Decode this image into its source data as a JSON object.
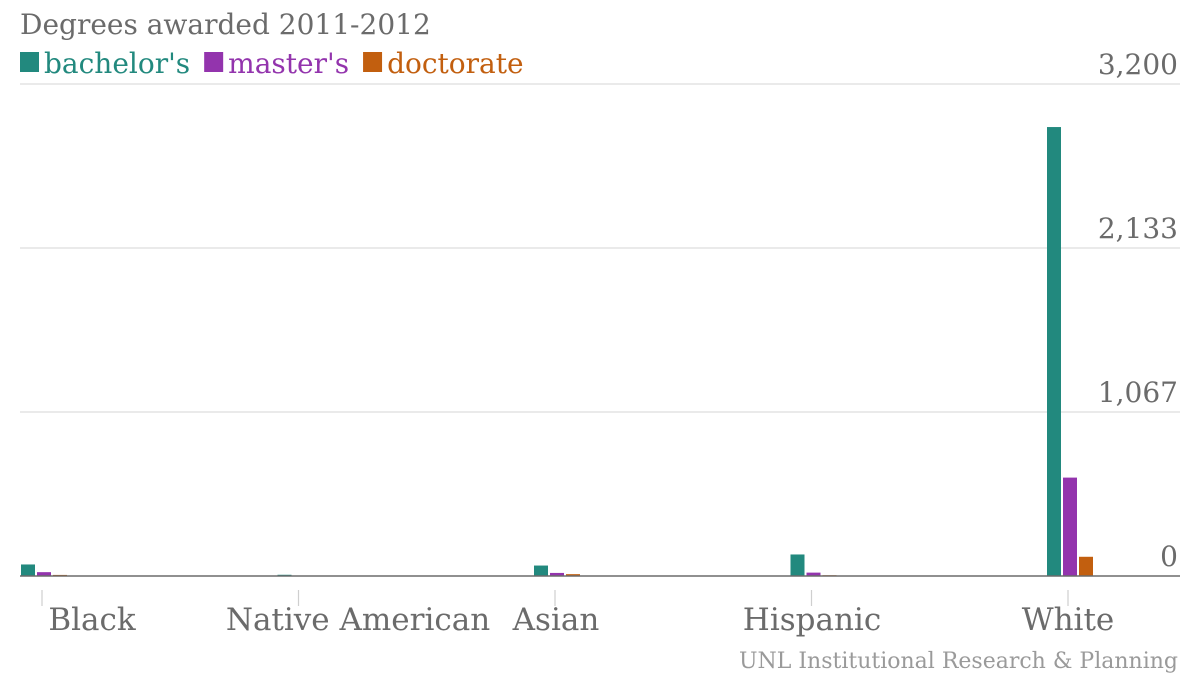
{
  "chart_data": {
    "type": "bar",
    "title": "Degrees awarded 2011-2012",
    "categories": [
      "Black",
      "Native American",
      "Asian",
      "Hispanic",
      "White"
    ],
    "series": [
      {
        "name": "bachelor's",
        "color": "#22897e",
        "values": [
          75,
          8,
          68,
          140,
          2920
        ]
      },
      {
        "name": "master's",
        "color": "#9334ad",
        "values": [
          25,
          3,
          20,
          22,
          640
        ]
      },
      {
        "name": "doctorate",
        "color": "#c25f0f",
        "values": [
          7,
          1,
          12,
          5,
          125
        ]
      }
    ],
    "yticks": [
      {
        "value": 0,
        "label": "0"
      },
      {
        "value": 1067,
        "label": "1,067"
      },
      {
        "value": 2133,
        "label": "2,133"
      },
      {
        "value": 3200,
        "label": "3,200"
      }
    ],
    "ylim": [
      0,
      3200
    ],
    "grid": true,
    "legend": "top-left",
    "source": "UNL Institutional Research & Planning"
  }
}
